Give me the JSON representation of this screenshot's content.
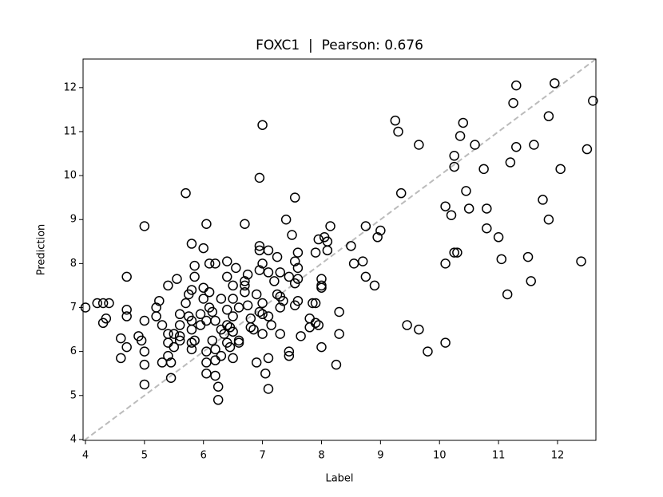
{
  "chart_data": {
    "type": "scatter",
    "title": "FOXC1  |  Pearson: 0.676",
    "x_label": "Label",
    "y_label": "Prediction",
    "color": "#000000",
    "x": [
      4.0,
      4.2,
      4.3,
      4.4,
      4.35,
      4.3,
      4.7,
      4.7,
      4.7,
      4.6,
      4.6,
      4.7,
      5.0,
      5.0,
      4.9,
      4.95,
      5.0,
      5.0,
      5.0,
      5.2,
      5.25,
      5.2,
      5.3,
      5.3,
      5.4,
      5.4,
      5.4,
      5.45,
      5.45,
      5.4,
      5.5,
      5.5,
      5.55,
      5.6,
      5.6,
      5.6,
      5.6,
      5.7,
      5.75,
      5.7,
      5.75,
      5.8,
      5.85,
      5.85,
      5.8,
      5.8,
      5.8,
      5.8,
      5.8,
      5.85,
      5.95,
      5.95,
      6.0,
      6.05,
      6.0,
      6.0,
      6.05,
      6.05,
      6.05,
      6.05,
      6.1,
      6.1,
      6.15,
      6.15,
      6.1,
      6.2,
      6.2,
      6.2,
      6.2,
      6.2,
      6.25,
      6.25,
      6.3,
      6.3,
      6.3,
      6.35,
      6.4,
      6.4,
      6.4,
      6.4,
      6.4,
      6.45,
      6.45,
      6.5,
      6.5,
      6.5,
      6.5,
      6.5,
      6.55,
      6.6,
      6.6,
      6.6,
      6.7,
      6.7,
      6.7,
      6.7,
      6.75,
      6.75,
      6.8,
      6.8,
      6.85,
      6.9,
      6.9,
      6.95,
      7.0,
      6.95,
      6.95,
      7.0,
      6.95,
      7.0,
      6.95,
      7.0,
      7.0,
      7.05,
      7.1,
      7.1,
      7.15,
      7.1,
      7.1,
      7.1,
      7.2,
      7.25,
      7.25,
      7.3,
      7.3,
      7.3,
      7.3,
      7.4,
      7.35,
      7.45,
      7.45,
      7.45,
      7.5,
      7.55,
      7.55,
      7.55,
      7.55,
      7.6,
      7.6,
      7.6,
      7.6,
      7.65,
      7.8,
      7.8,
      7.85,
      7.9,
      7.9,
      7.9,
      7.95,
      7.95,
      8.0,
      8.0,
      8.0,
      8.0,
      8.05,
      8.1,
      8.1,
      8.15,
      8.25,
      8.3,
      8.3,
      8.5,
      8.55,
      8.7,
      8.75,
      8.75,
      8.9,
      8.95,
      9.0,
      9.25,
      9.3,
      9.35,
      9.45,
      9.65,
      9.65,
      9.8,
      10.1,
      10.1,
      10.1,
      10.2,
      10.25,
      10.25,
      10.25,
      10.3,
      10.35,
      10.4,
      10.45,
      10.5,
      10.6,
      10.75,
      10.8,
      10.8,
      11.0,
      11.05,
      11.15,
      11.2,
      11.25,
      11.3,
      11.3,
      11.5,
      11.55,
      11.6,
      11.75,
      11.85,
      11.85,
      11.95,
      12.05,
      12.4,
      12.5,
      12.6
    ],
    "values": [
      7.0,
      7.1,
      7.1,
      7.1,
      6.75,
      6.65,
      7.7,
      6.95,
      6.8,
      6.3,
      5.85,
      6.1,
      8.85,
      6.7,
      6.35,
      6.25,
      6.0,
      5.7,
      5.25,
      7.0,
      7.15,
      6.8,
      6.6,
      5.75,
      6.4,
      6.2,
      5.9,
      5.75,
      5.4,
      7.5,
      6.4,
      6.1,
      7.65,
      6.85,
      6.6,
      6.35,
      6.25,
      9.6,
      7.3,
      7.1,
      6.8,
      8.45,
      7.95,
      7.7,
      7.4,
      6.7,
      6.5,
      6.2,
      6.05,
      6.25,
      6.6,
      6.85,
      8.35,
      8.9,
      7.45,
      7.2,
      6.7,
      6.0,
      5.75,
      5.5,
      7.35,
      7.0,
      6.9,
      6.25,
      8.0,
      8.0,
      6.7,
      6.05,
      5.8,
      5.45,
      5.2,
      4.9,
      7.2,
      6.5,
      5.9,
      6.4,
      8.05,
      7.7,
      6.95,
      6.6,
      6.2,
      6.1,
      6.55,
      7.5,
      7.2,
      6.8,
      6.45,
      5.85,
      7.9,
      7.0,
      6.25,
      6.2,
      8.9,
      7.6,
      7.5,
      7.35,
      7.75,
      7.05,
      6.75,
      6.55,
      6.5,
      7.3,
      5.75,
      9.95,
      11.15,
      8.4,
      8.3,
      8.0,
      7.85,
      7.1,
      6.9,
      6.85,
      6.4,
      5.5,
      8.3,
      7.8,
      6.6,
      6.8,
      5.85,
      5.15,
      7.6,
      8.15,
      7.3,
      7.25,
      7.0,
      7.8,
      6.4,
      9.0,
      7.15,
      7.7,
      6.0,
      5.9,
      8.65,
      9.5,
      8.05,
      7.55,
      7.05,
      8.25,
      7.9,
      7.65,
      7.15,
      6.35,
      6.55,
      6.75,
      7.1,
      7.1,
      6.65,
      8.25,
      8.55,
      6.6,
      7.65,
      7.45,
      7.5,
      6.1,
      8.6,
      8.5,
      8.3,
      8.85,
      5.7,
      6.9,
      6.4,
      8.4,
      8.0,
      8.05,
      8.85,
      7.7,
      7.5,
      8.6,
      8.75,
      11.25,
      11.0,
      9.6,
      6.6,
      10.7,
      6.5,
      6.0,
      9.3,
      8.0,
      6.2,
      9.1,
      10.45,
      10.2,
      8.25,
      8.25,
      10.9,
      11.2,
      9.65,
      9.25,
      10.7,
      10.15,
      9.25,
      8.8,
      8.6,
      8.1,
      7.3,
      10.3,
      11.65,
      12.05,
      10.65,
      8.15,
      7.6,
      10.7,
      9.45,
      11.35,
      9.0,
      12.1,
      10.15,
      8.05,
      10.6,
      11.7
    ],
    "xlim": [
      3.96,
      12.65
    ],
    "ylim": [
      3.98,
      12.65
    ],
    "xticks": [
      4,
      5,
      6,
      7,
      8,
      9,
      10,
      11,
      12
    ],
    "yticks": [
      4,
      5,
      6,
      7,
      8,
      9,
      10,
      11,
      12
    ]
  }
}
